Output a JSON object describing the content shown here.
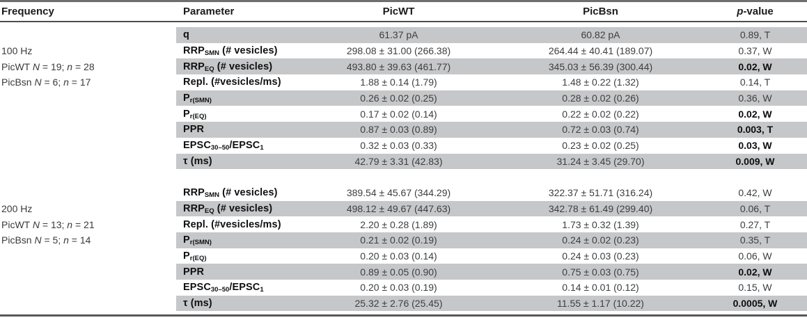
{
  "header": {
    "frequency": "Frequency",
    "parameter": "Parameter",
    "picwt": "PicWT",
    "picbsn": "PicBsn",
    "pvalue_italic": "p",
    "pvalue_rest": "-value"
  },
  "colors": {
    "row_shade": "#c6c7c9",
    "rule_dark": "#555555",
    "text_regular": "#3e3e3e",
    "text_bold": "#101010"
  },
  "rows": [
    {
      "shaded": true,
      "freq": [],
      "param": [
        {
          "t": "q"
        }
      ],
      "picwt": "61.37 pA",
      "picbsn": "60.82 pA",
      "pval": "0.89, T",
      "pbold": false
    },
    {
      "shaded": false,
      "freq": [
        {
          "t": "100 Hz"
        }
      ],
      "param": [
        {
          "t": "RRP"
        },
        {
          "t": "SMN",
          "sub": true
        },
        {
          "t": " (# vesicles)"
        }
      ],
      "picwt": "298.08 ± 31.00 (266.38)",
      "picbsn": "264.44 ± 40.41 (189.07)",
      "pval": "0.37, W",
      "pbold": false
    },
    {
      "shaded": true,
      "freq": [
        {
          "t": "PicWT "
        },
        {
          "t": "N",
          "i": true
        },
        {
          "t": " = 19; "
        },
        {
          "t": "n",
          "i": true
        },
        {
          "t": " = 28"
        }
      ],
      "param": [
        {
          "t": "RRP"
        },
        {
          "t": "EQ",
          "sub": true
        },
        {
          "t": " (# vesicles)"
        }
      ],
      "picwt": "493.80 ± 39.63 (461.77)",
      "picbsn": "345.03 ± 56.39 (300.44)",
      "pval": "0.02, W",
      "pbold": true
    },
    {
      "shaded": false,
      "freq": [
        {
          "t": "PicBsn "
        },
        {
          "t": "N",
          "i": true
        },
        {
          "t": " = 6; "
        },
        {
          "t": "n",
          "i": true
        },
        {
          "t": " = 17"
        }
      ],
      "param": [
        {
          "t": "Repl. (#vesicles/ms)"
        }
      ],
      "picwt": "1.88 ± 0.14 (1.79)",
      "picbsn": "1.48 ± 0.22 (1.32)",
      "pval": "0.14, T",
      "pbold": false
    },
    {
      "shaded": true,
      "freq": [],
      "param": [
        {
          "t": "P"
        },
        {
          "t": "r(SMN)",
          "sub": true
        }
      ],
      "picwt": "0.26 ± 0.02 (0.25)",
      "picbsn": "0.28 ± 0.02 (0.26)",
      "pval": "0.36, W",
      "pbold": false
    },
    {
      "shaded": false,
      "freq": [],
      "param": [
        {
          "t": "P"
        },
        {
          "t": "r(EQ)",
          "sub": true
        }
      ],
      "picwt": "0.17 ± 0.02 (0.14)",
      "picbsn": "0.22 ± 0.02 (0.22)",
      "pval": "0.02, W",
      "pbold": true
    },
    {
      "shaded": true,
      "freq": [],
      "param": [
        {
          "t": "PPR"
        }
      ],
      "picwt": "0.87 ± 0.03 (0.89)",
      "picbsn": "0.72 ± 0.03 (0.74)",
      "pval": "0.003, T",
      "pbold": true
    },
    {
      "shaded": false,
      "freq": [],
      "param": [
        {
          "t": "EPSC"
        },
        {
          "t": "30–50",
          "sub": true
        },
        {
          "t": "/EPSC"
        },
        {
          "t": "1",
          "sub": true
        }
      ],
      "picwt": "0.32 ± 0.03 (0.33)",
      "picbsn": "0.23 ± 0.02 (0.25)",
      "pval": "0.03, W",
      "pbold": true
    },
    {
      "shaded": true,
      "freq": [],
      "param": [
        {
          "t": "τ (ms)"
        }
      ],
      "picwt": "42.79 ± 3.31 (42.83)",
      "picbsn": "31.24 ± 3.45 (29.70)",
      "pval": "0.009, W",
      "pbold": true
    },
    {
      "gap": true
    },
    {
      "shaded": false,
      "freq": [],
      "param": [
        {
          "t": "RRP"
        },
        {
          "t": "SMN",
          "sub": true
        },
        {
          "t": " (# vesicles)"
        }
      ],
      "picwt": "389.54 ± 45.67 (344.29)",
      "picbsn": "322.37 ± 51.71 (316.24)",
      "pval": "0.42, W",
      "pbold": false
    },
    {
      "shaded": true,
      "freq": [
        {
          "t": "200 Hz"
        }
      ],
      "param": [
        {
          "t": "RRP"
        },
        {
          "t": "EQ",
          "sub": true
        },
        {
          "t": " (# vesicles)"
        }
      ],
      "picwt": "498.12 ± 49.67 (447.63)",
      "picbsn": "342.78 ± 61.49 (299.40)",
      "pval": "0.06, T",
      "pbold": false
    },
    {
      "shaded": false,
      "freq": [
        {
          "t": "PicWT "
        },
        {
          "t": "N",
          "i": true
        },
        {
          "t": " = 13; "
        },
        {
          "t": "n",
          "i": true
        },
        {
          "t": " = 21"
        }
      ],
      "param": [
        {
          "t": "Repl. (#vesicles/ms)"
        }
      ],
      "picwt": "2.20 ± 0.28 (1.89)",
      "picbsn": "1.73 ± 0.32 (1.39)",
      "pval": "0.27, T",
      "pbold": false
    },
    {
      "shaded": true,
      "freq": [
        {
          "t": "PicBsn "
        },
        {
          "t": "N",
          "i": true
        },
        {
          "t": " = 5; "
        },
        {
          "t": "n",
          "i": true
        },
        {
          "t": " = 14"
        }
      ],
      "param": [
        {
          "t": "P"
        },
        {
          "t": "r(SMN)",
          "sub": true
        }
      ],
      "picwt": "0.21 ± 0.02 (0.19)",
      "picbsn": "0.24 ± 0.02 (0.23)",
      "pval": "0.35, T",
      "pbold": false
    },
    {
      "shaded": false,
      "freq": [],
      "param": [
        {
          "t": "P"
        },
        {
          "t": "r(EQ)",
          "sub": true
        }
      ],
      "picwt": "0.20 ± 0.03 (0.14)",
      "picbsn": "0.24 ± 0.03 (0.23)",
      "pval": "0.06, W",
      "pbold": false
    },
    {
      "shaded": true,
      "freq": [],
      "param": [
        {
          "t": "PPR"
        }
      ],
      "picwt": "0.89 ± 0.05 (0.90)",
      "picbsn": "0.75 ± 0.03 (0.75)",
      "pval": "0.02, W",
      "pbold": true
    },
    {
      "shaded": false,
      "freq": [],
      "param": [
        {
          "t": "EPSC"
        },
        {
          "t": "30–50",
          "sub": true
        },
        {
          "t": "/EPSC"
        },
        {
          "t": "1",
          "sub": true
        }
      ],
      "picwt": "0.20 ± 0.03 (0.19)",
      "picbsn": "0.14 ± 0.01 (0.12)",
      "pval": "0.15, W",
      "pbold": false
    },
    {
      "shaded": true,
      "freq": [],
      "param": [
        {
          "t": "τ (ms)"
        }
      ],
      "picwt": "25.32 ± 2.76 (25.45)",
      "picbsn": "11.55 ± 1.17 (10.22)",
      "pval": "0.0005, W",
      "pbold": true
    }
  ]
}
